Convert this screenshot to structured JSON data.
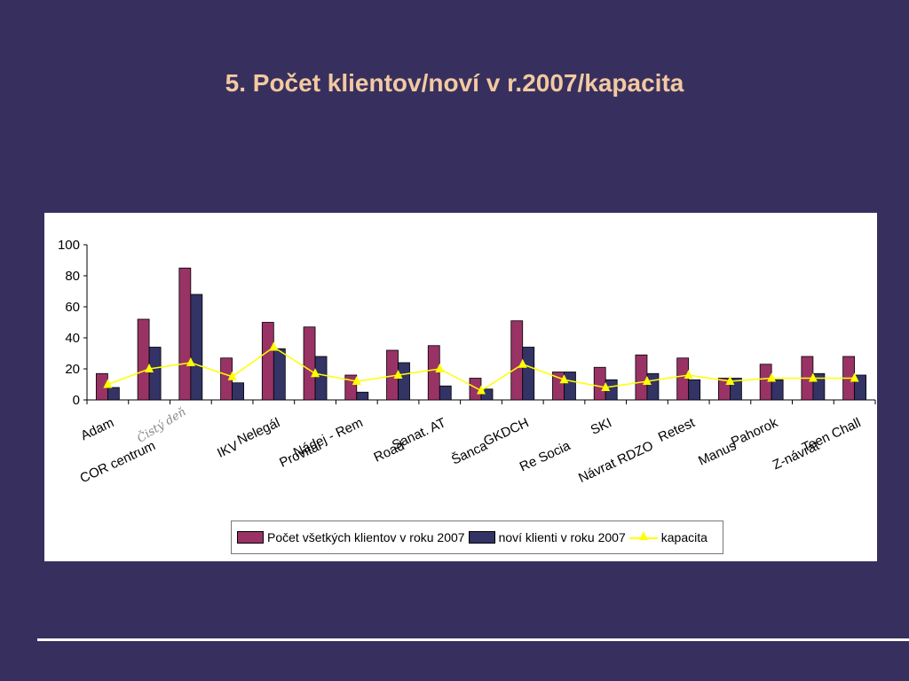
{
  "slide": {
    "title": "5. Počet klientov/noví v r.2007/kapacita",
    "background": "#37305f",
    "title_color": "#f3c9a0"
  },
  "annotation": "Čistý deň",
  "chart_data": {
    "type": "bar",
    "categories": [
      "Adam",
      "COR centrum",
      "Čistý deň",
      "IKV",
      "Nelegál",
      "Provital",
      "Nádej - Rem",
      "Road",
      "Sanat. AT",
      "Šanca",
      "GKDCH",
      "Re Socia",
      "SKI",
      "Návrat RDZO",
      "Retest",
      "Manus",
      "Pahorok",
      "Z-návrat",
      "Teen Chall"
    ],
    "series": [
      {
        "name": "Počet všetkých klientov v roku 2007",
        "type": "bar",
        "color": "#993366",
        "values": [
          17,
          52,
          85,
          27,
          50,
          47,
          16,
          32,
          35,
          14,
          51,
          18,
          21,
          29,
          27,
          14,
          23,
          28,
          28
        ]
      },
      {
        "name": "noví klienti v roku 2007",
        "type": "bar",
        "color": "#333366",
        "values": [
          8,
          34,
          68,
          11,
          33,
          28,
          5,
          24,
          9,
          7,
          34,
          18,
          13,
          17,
          13,
          14,
          13,
          17,
          16
        ]
      },
      {
        "name": "kapacita",
        "type": "line",
        "color": "#ffff00",
        "values": [
          10,
          20,
          24,
          15,
          34,
          17,
          12,
          16,
          20,
          6,
          23,
          13,
          8,
          12,
          16,
          12,
          14,
          14,
          14
        ]
      }
    ],
    "yticks": [
      "0",
      "20",
      "40",
      "60",
      "80",
      "100"
    ],
    "ylim": [
      0,
      100
    ],
    "title": "",
    "xlabel": "",
    "ylabel": "",
    "grid": false,
    "legend_position": "bottom"
  },
  "tick_labels": [
    "Adam",
    "COR centrum",
    "",
    "IKV",
    "Nelegál",
    "Provital",
    "Nádej - Rem",
    "Road",
    "Sanat. AT",
    "Šanca",
    "GKDCH",
    "Re Socia",
    "SKI",
    "Návrat RDZO",
    "Retest",
    "Manus",
    "Pahorok",
    "Z-návrat",
    "Teen Chall"
  ]
}
